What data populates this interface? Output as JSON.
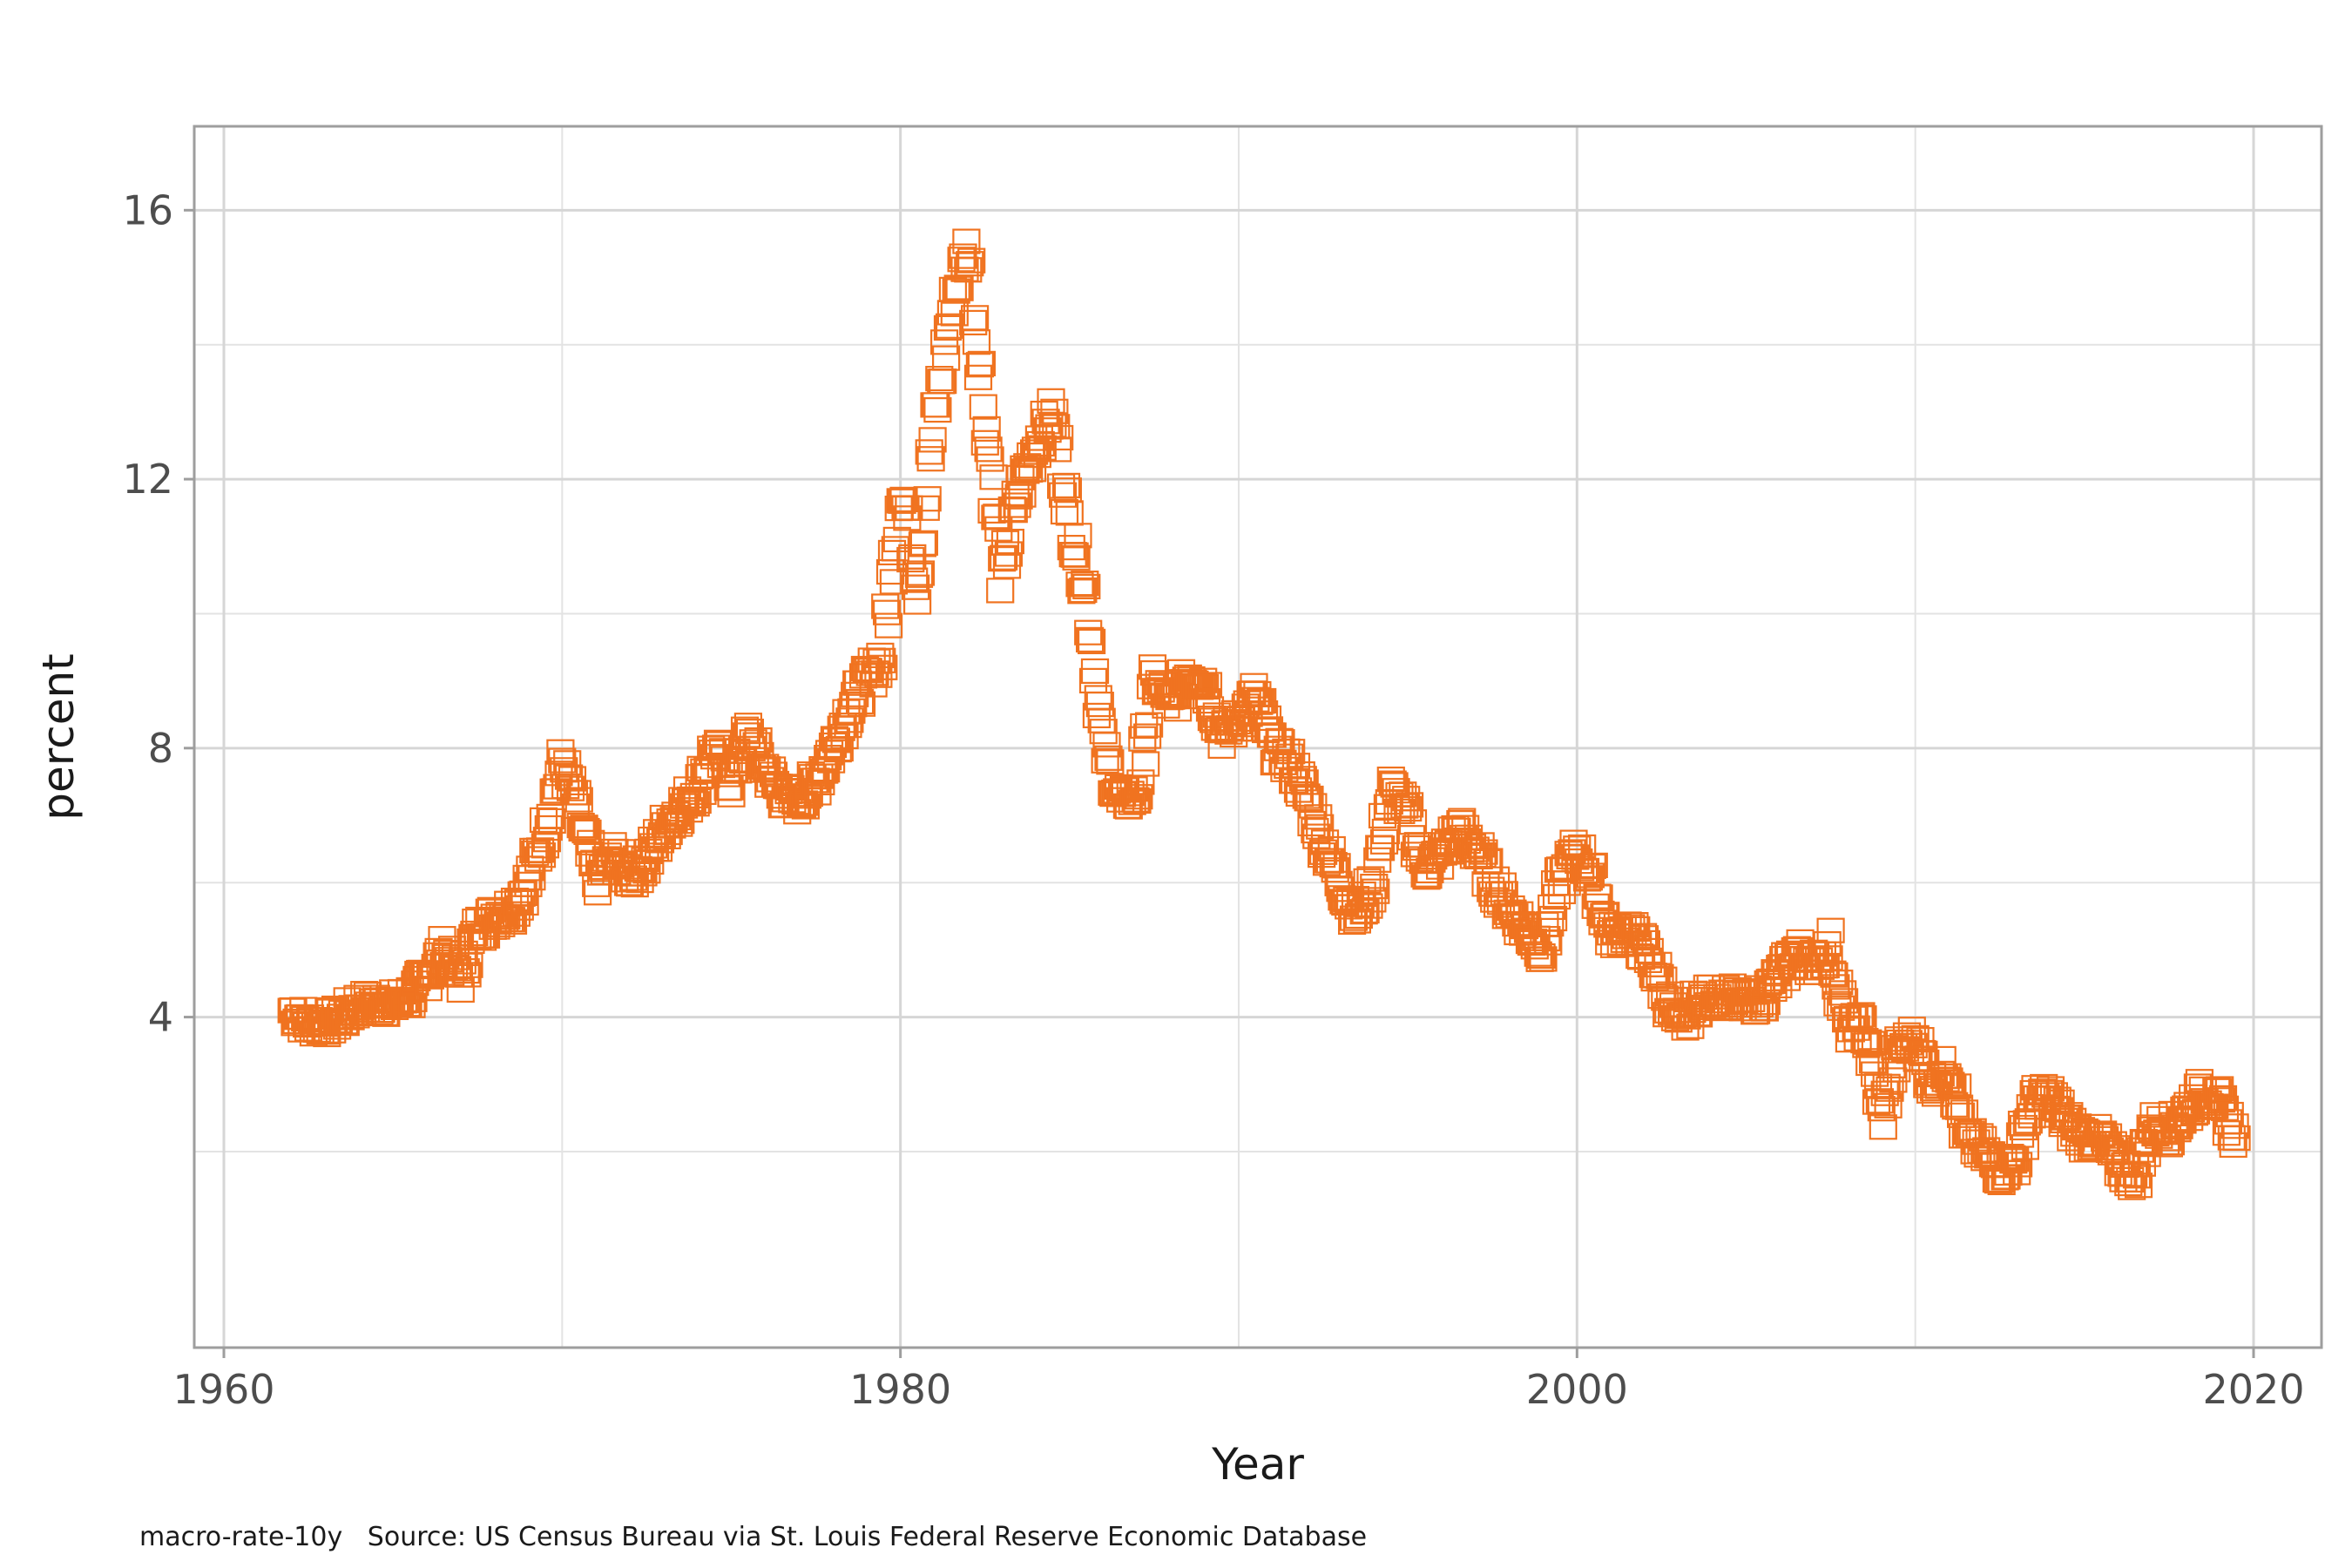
{
  "chart_data": {
    "type": "scatter",
    "title": "",
    "xlabel": "Year",
    "ylabel": "percent",
    "xlim": [
      1960,
      2020
    ],
    "ylim": [
      0.6,
      16.6
    ],
    "x_ticks": [
      1960,
      1980,
      2000,
      2020
    ],
    "x_tick_labels": [
      "1960",
      "1980",
      "2000",
      "2020"
    ],
    "y_ticks": [
      4,
      8,
      12,
      16
    ],
    "y_tick_labels": [
      "4",
      "8",
      "12",
      "16"
    ],
    "grid": true,
    "marker": "open-square",
    "series_color": "#f07320",
    "series": [
      {
        "x": [
          1962.0,
          1962.5,
          1963.0,
          1963.5,
          1964.0,
          1964.5,
          1965.0,
          1965.5,
          1966.0,
          1966.5,
          1967.0,
          1967.5,
          1968.0,
          1968.5,
          1969.0,
          1969.5,
          1970.0,
          1970.5,
          1971.0,
          1971.5,
          1972.0,
          1972.5,
          1973.0,
          1973.5,
          1974.0,
          1974.5,
          1975.0,
          1975.5,
          1976.0,
          1976.5,
          1977.0,
          1977.5,
          1978.0,
          1978.5,
          1979.0,
          1979.5,
          1980.0,
          1980.5,
          1981.0,
          1981.5,
          1982.0,
          1982.5,
          1983.0,
          1983.5,
          1984.0,
          1984.5,
          1985.0,
          1985.5,
          1986.0,
          1986.5,
          1987.0,
          1987.5,
          1988.0,
          1988.5,
          1989.0,
          1989.5,
          1990.0,
          1990.5,
          1991.0,
          1991.5,
          1992.0,
          1992.5,
          1993.0,
          1993.5,
          1994.0,
          1994.5,
          1995.0,
          1995.5,
          1996.0,
          1996.5,
          1997.0,
          1997.5,
          1998.0,
          1998.5,
          1999.0,
          1999.5,
          2000.0,
          2000.5,
          2001.0,
          2001.5,
          2002.0,
          2002.5,
          2003.0,
          2003.5,
          2004.0,
          2004.5,
          2005.0,
          2005.5,
          2006.0,
          2006.5,
          2007.0,
          2007.5,
          2008.0,
          2008.5,
          2009.0,
          2009.5,
          2010.0,
          2010.5,
          2011.0,
          2011.5,
          2012.0,
          2012.5,
          2013.0,
          2013.5,
          2014.0,
          2014.5,
          2015.0,
          2015.5,
          2016.0,
          2016.5,
          2017.0,
          2017.5,
          2018.0,
          2018.5,
          2019.0,
          2019.5
        ],
        "y": [
          4.1,
          3.9,
          3.9,
          4.0,
          4.2,
          4.2,
          4.2,
          4.3,
          4.6,
          5.0,
          4.6,
          5.3,
          5.5,
          5.6,
          6.0,
          6.8,
          7.8,
          7.0,
          6.0,
          6.4,
          6.1,
          6.3,
          6.8,
          7.1,
          7.4,
          8.0,
          7.5,
          8.2,
          7.7,
          7.3,
          7.2,
          7.5,
          8.0,
          8.6,
          9.0,
          9.4,
          12.0,
          10.5,
          12.8,
          14.5,
          15.5,
          13.0,
          10.5,
          11.8,
          12.5,
          13.0,
          11.4,
          10.3,
          8.0,
          7.2,
          7.3,
          9.0,
          8.6,
          9.1,
          9.0,
          8.2,
          8.4,
          8.8,
          8.0,
          7.8,
          7.3,
          6.6,
          6.0,
          5.5,
          6.0,
          7.4,
          7.0,
          6.2,
          6.4,
          6.8,
          6.5,
          6.0,
          5.6,
          5.3,
          5.0,
          6.0,
          6.5,
          6.0,
          5.2,
          5.3,
          5.0,
          4.5,
          3.8,
          4.2,
          4.3,
          4.3,
          4.2,
          4.3,
          4.6,
          5.0,
          4.8,
          5.0,
          3.8,
          3.9,
          2.5,
          3.5,
          3.7,
          3.0,
          3.3,
          2.2,
          2.0,
          1.7,
          1.9,
          2.8,
          2.8,
          2.4,
          2.2,
          2.2,
          1.8,
          1.6,
          2.4,
          2.3,
          2.6,
          2.9,
          2.7,
          2.2
        ]
      }
    ]
  },
  "caption": {
    "text": "macro-rate-10y   Source: US Census Bureau via St. Louis Federal Reserve Economic Database"
  }
}
